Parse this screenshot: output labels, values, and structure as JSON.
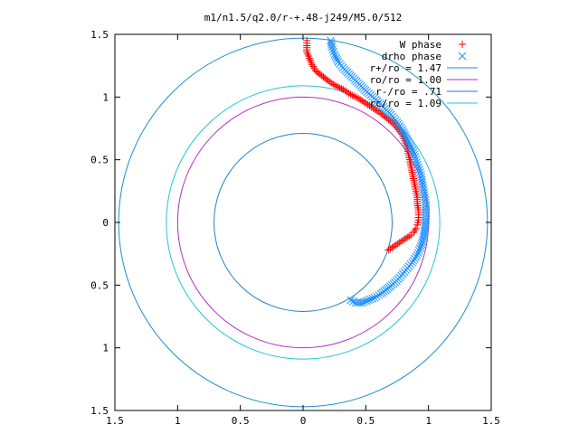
{
  "chart_data": {
    "type": "scatter",
    "title": "m1/n1.5/q2.0/r-+.48-j249/M5.0/512",
    "xlabel": "",
    "ylabel": "",
    "xlim": [
      -1.5,
      1.5
    ],
    "ylim": [
      -1.5,
      1.5
    ],
    "x_ticks": [
      -1.5,
      -1,
      -0.5,
      0,
      0.5,
      1,
      1.5
    ],
    "y_ticks": [
      -1.5,
      -1,
      -0.5,
      0,
      0.5,
      1,
      1.5
    ],
    "x_tick_labels": [
      "1.5",
      "1",
      "0.5",
      "0",
      "0.5",
      "1",
      "1.5"
    ],
    "y_tick_labels": [
      "1.5",
      "1",
      "0.5",
      "0",
      "0.5",
      "1",
      "1.5"
    ],
    "grid": false,
    "legend_position": "top-right",
    "series": [
      {
        "name": "W phase",
        "marker": "plus",
        "color": "#ff0000",
        "points": [
          [
            0.68,
            -0.22
          ],
          [
            0.71,
            -0.2
          ],
          [
            0.74,
            -0.18
          ],
          [
            0.77,
            -0.16
          ],
          [
            0.8,
            -0.14
          ],
          [
            0.83,
            -0.12
          ],
          [
            0.86,
            -0.1
          ],
          [
            0.88,
            -0.08
          ],
          [
            0.9,
            -0.05
          ],
          [
            0.91,
            -0.02
          ],
          [
            0.92,
            0.02
          ],
          [
            0.92,
            0.06
          ],
          [
            0.92,
            0.1
          ],
          [
            0.91,
            0.15
          ],
          [
            0.91,
            0.2
          ],
          [
            0.9,
            0.25
          ],
          [
            0.89,
            0.3
          ],
          [
            0.88,
            0.35
          ],
          [
            0.87,
            0.4
          ],
          [
            0.86,
            0.45
          ],
          [
            0.85,
            0.5
          ],
          [
            0.84,
            0.55
          ],
          [
            0.83,
            0.6
          ],
          [
            0.81,
            0.65
          ],
          [
            0.79,
            0.7
          ],
          [
            0.76,
            0.74
          ],
          [
            0.72,
            0.79
          ],
          [
            0.67,
            0.83
          ],
          [
            0.62,
            0.87
          ],
          [
            0.56,
            0.91
          ],
          [
            0.5,
            0.95
          ],
          [
            0.44,
            0.99
          ],
          [
            0.38,
            1.02
          ],
          [
            0.32,
            1.06
          ],
          [
            0.26,
            1.09
          ],
          [
            0.2,
            1.13
          ],
          [
            0.15,
            1.17
          ],
          [
            0.1,
            1.21
          ],
          [
            0.07,
            1.26
          ],
          [
            0.05,
            1.31
          ],
          [
            0.03,
            1.36
          ],
          [
            0.03,
            1.41
          ],
          [
            0.03,
            1.45
          ]
        ]
      },
      {
        "name": "drho phase",
        "marker": "cross",
        "color": "#1e90ff",
        "points": [
          [
            0.38,
            -0.62
          ],
          [
            0.42,
            -0.64
          ],
          [
            0.47,
            -0.64
          ],
          [
            0.52,
            -0.62
          ],
          [
            0.57,
            -0.6
          ],
          [
            0.62,
            -0.57
          ],
          [
            0.67,
            -0.53
          ],
          [
            0.72,
            -0.49
          ],
          [
            0.77,
            -0.44
          ],
          [
            0.82,
            -0.38
          ],
          [
            0.87,
            -0.32
          ],
          [
            0.91,
            -0.26
          ],
          [
            0.94,
            -0.19
          ],
          [
            0.96,
            -0.12
          ],
          [
            0.97,
            -0.05
          ],
          [
            0.98,
            0.02
          ],
          [
            0.98,
            0.08
          ],
          [
            0.98,
            0.14
          ],
          [
            0.97,
            0.2
          ],
          [
            0.96,
            0.26
          ],
          [
            0.95,
            0.32
          ],
          [
            0.94,
            0.38
          ],
          [
            0.92,
            0.44
          ],
          [
            0.9,
            0.5
          ],
          [
            0.88,
            0.56
          ],
          [
            0.85,
            0.62
          ],
          [
            0.82,
            0.68
          ],
          [
            0.79,
            0.74
          ],
          [
            0.75,
            0.8
          ],
          [
            0.7,
            0.86
          ],
          [
            0.64,
            0.92
          ],
          [
            0.58,
            0.98
          ],
          [
            0.51,
            1.04
          ],
          [
            0.45,
            1.1
          ],
          [
            0.39,
            1.16
          ],
          [
            0.33,
            1.22
          ],
          [
            0.28,
            1.28
          ],
          [
            0.25,
            1.34
          ],
          [
            0.23,
            1.4
          ],
          [
            0.22,
            1.45
          ]
        ]
      }
    ],
    "circles": [
      {
        "name": "r+/ro = 1.47",
        "radius": 1.47,
        "color": "#1a8fd0"
      },
      {
        "name": "ro/ro = 1.00",
        "radius": 1.0,
        "color": "#b030c0"
      },
      {
        "name": "r-/ro = .71",
        "radius": 0.71,
        "color": "#2080c8"
      },
      {
        "name": "rc/ro = 1.09",
        "radius": 1.09,
        "color": "#20c8d0"
      }
    ]
  }
}
